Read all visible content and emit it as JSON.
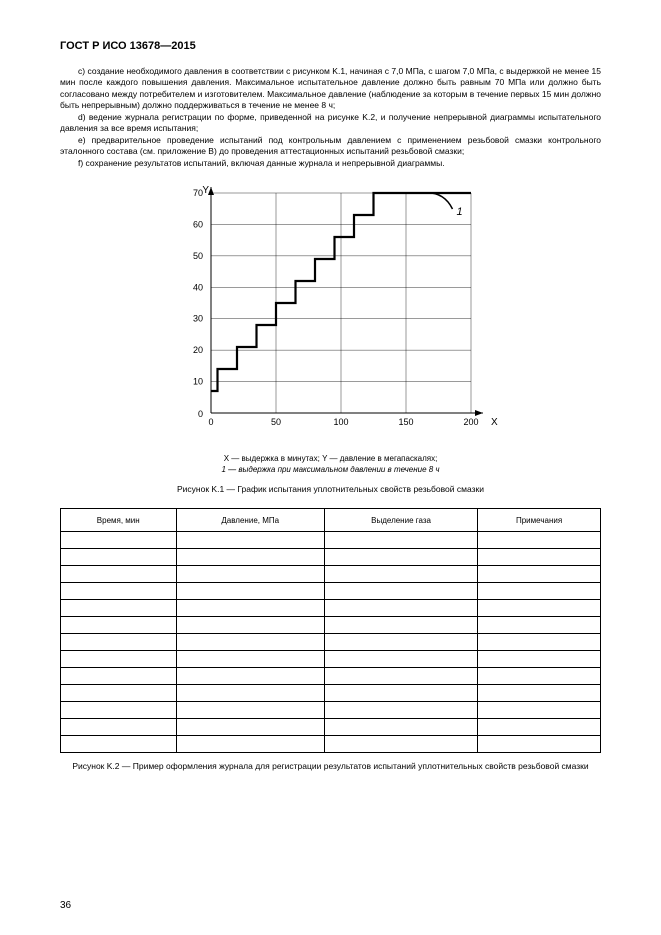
{
  "header": "ГОСТ Р ИСО 13678—2015",
  "paragraphs": {
    "c": "c) создание необходимого давления в соответствии с рисунком K.1, начиная с 7,0 МПа, с шагом 7,0 МПа, с выдержкой не менее 15 мин после каждого повышения давления. Максимальное испытательное давление должно быть равным 70 МПа или должно быть согласовано между потребителем и изготовителем. Максимальное давление (наблюдение за которым в течение первых 15 мин должно быть непрерывным) должно поддерживаться в течение не менее 8 ч;",
    "d": "d) ведение журнала регистрации по форме, приведенной на рисунке K.2, и получение непрерывной диаграммы испытательного давления за все время испытания;",
    "e": "e) предварительное проведение испытаний под контрольным давлением с применением резьбовой смазки контрольного эталонного состава (см. приложение B) до проведения аттестационных испытаний резьбовой смазки;",
    "f": "f) сохранение результатов испытаний, включая данные журнала и непрерывной диаграммы."
  },
  "chart": {
    "type": "step-line",
    "x_axis_label": "X",
    "y_axis_label": "Y",
    "x_range": [
      0,
      200
    ],
    "y_range": [
      0,
      70
    ],
    "x_ticks": [
      0,
      50,
      100,
      150,
      200
    ],
    "y_ticks": [
      10,
      20,
      30,
      40,
      50,
      60,
      70
    ],
    "tick_fontsize": 9,
    "axis_label_fontsize": 10,
    "plot_bg": "#ffffff",
    "grid_color": "#000000",
    "grid_stroke_width": 0.4,
    "axis_stroke_width": 1,
    "step_line_color": "#000000",
    "step_line_width": 2.2,
    "annotation_label": "1",
    "annotation_font_style": "italic",
    "step_points": [
      [
        0,
        7
      ],
      [
        5,
        7
      ],
      [
        5,
        14
      ],
      [
        20,
        14
      ],
      [
        20,
        21
      ],
      [
        35,
        21
      ],
      [
        35,
        28
      ],
      [
        50,
        28
      ],
      [
        50,
        35
      ],
      [
        65,
        35
      ],
      [
        65,
        42
      ],
      [
        80,
        42
      ],
      [
        80,
        49
      ],
      [
        95,
        49
      ],
      [
        95,
        56
      ],
      [
        110,
        56
      ],
      [
        110,
        63
      ],
      [
        125,
        63
      ],
      [
        125,
        70
      ],
      [
        200,
        70
      ]
    ],
    "caption_line1": "X — выдержка в минутах; Y — давление в мегапаскалях;",
    "caption_line2": "1 — выдержка при максимальном давлении в течение 8 ч",
    "figure_title": "Рисунок K.1 — График испытания уплотнительных свойств резьбовой смазки"
  },
  "table": {
    "columns": [
      "Время, мин",
      "Давление, МПа",
      "Выделение газа",
      "Примечания"
    ],
    "empty_rows": 13,
    "figure_title": "Рисунок K.2 — Пример оформления журнала для регистрации результатов испытаний уплотнительных свойств резьбовой смазки"
  },
  "page_number": "36"
}
